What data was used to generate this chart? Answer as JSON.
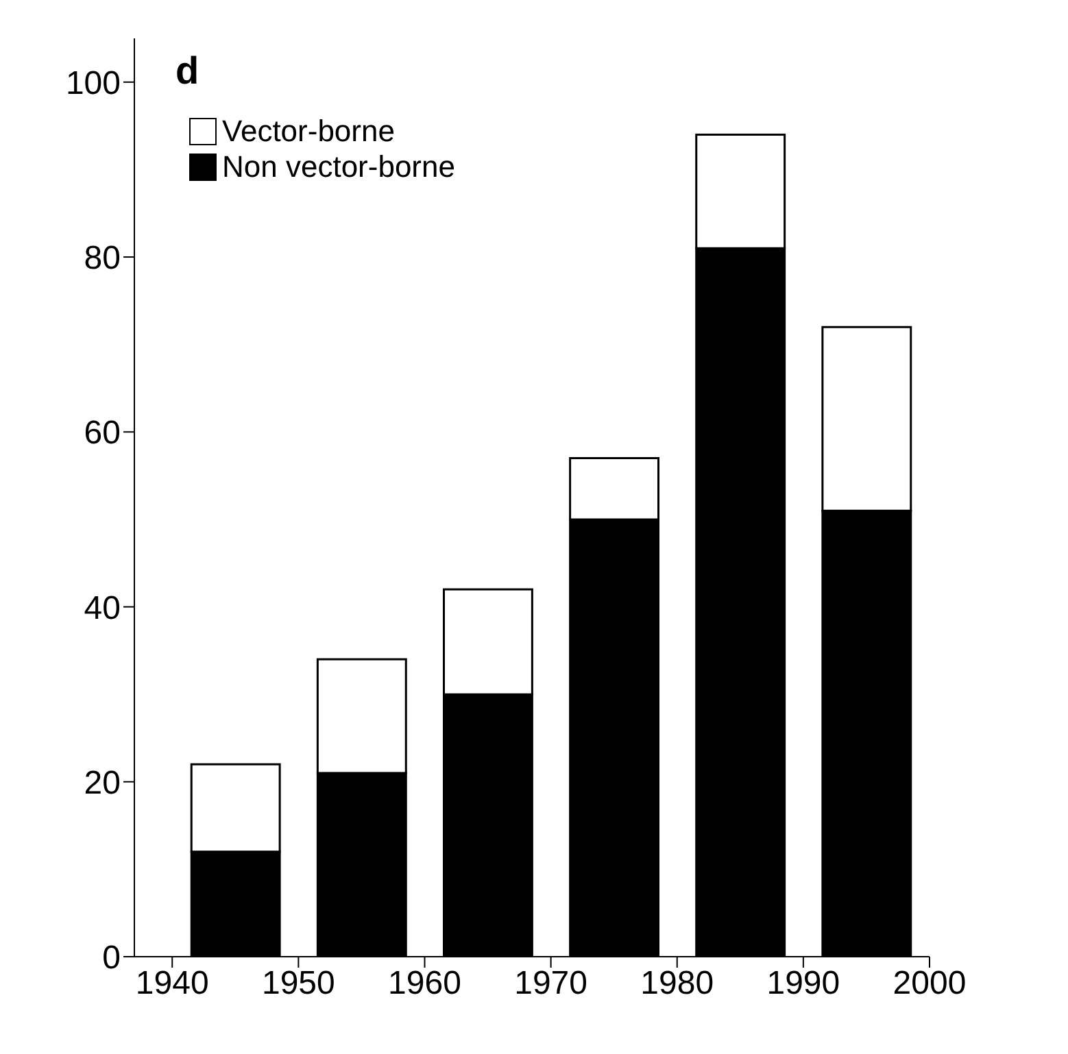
{
  "chart_data": {
    "type": "bar",
    "title": "d",
    "stacked": true,
    "x": [
      1945,
      1955,
      1965,
      1975,
      1985,
      1995
    ],
    "series": [
      {
        "name": "Non vector-borne",
        "color": "#000000",
        "values": [
          12,
          21,
          30,
          50,
          81,
          51
        ]
      },
      {
        "name": "Vector-borne",
        "color": "#ffffff",
        "values": [
          10,
          13,
          12,
          7,
          13,
          21
        ]
      }
    ],
    "xlim": [
      1937,
      2000
    ],
    "xticks": [
      1940,
      1950,
      1960,
      1970,
      1980,
      1990,
      2000
    ],
    "ylim": [
      0,
      105
    ],
    "yticks": [
      0,
      20,
      40,
      60,
      80,
      100
    ],
    "grid": false,
    "legend": "top left"
  }
}
